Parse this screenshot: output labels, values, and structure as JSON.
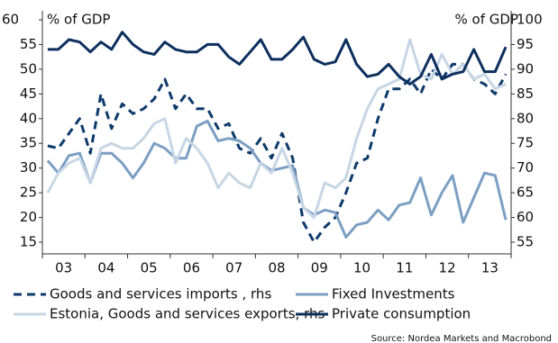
{
  "chart_data": {
    "type": "line",
    "ylabel": "% of GDP",
    "y2label": "% of GDP",
    "categories": [
      null,
      "03",
      null,
      null,
      null,
      "04",
      null,
      null,
      null,
      "05",
      null,
      null,
      null,
      "06",
      null,
      null,
      null,
      "07",
      null,
      null,
      null,
      "08",
      null,
      null,
      null,
      "09",
      null,
      null,
      null,
      "10",
      null,
      null,
      null,
      "11",
      null,
      null,
      null,
      "12",
      null,
      null,
      null,
      "13",
      null,
      null
    ],
    "ylim": [
      15,
      60
    ],
    "yticks": [
      15,
      20,
      25,
      30,
      35,
      40,
      45,
      50,
      55,
      60
    ],
    "y2lim": [
      55,
      100
    ],
    "y2ticks": [
      55,
      60,
      65,
      70,
      75,
      80,
      85,
      90,
      95,
      100
    ],
    "series": [
      {
        "name": "Goods and services imports , rhs",
        "color": "#0d3a6b",
        "dashed": true,
        "axis": "y2",
        "values": [
          74.5,
          74,
          77,
          80,
          73,
          85,
          78,
          83,
          81,
          82,
          84,
          88,
          82,
          85,
          82,
          82,
          78,
          79,
          74,
          73,
          76,
          72,
          77,
          72,
          59,
          55,
          58,
          60,
          65,
          71,
          72,
          80,
          86,
          86,
          88,
          85,
          90,
          88,
          91,
          91,
          88,
          87,
          85,
          89
        ]
      },
      {
        "name": "Fixed Investments",
        "color": "#7b9fc2",
        "dashed": false,
        "values": [
          31.5,
          29,
          32.5,
          33,
          27,
          33,
          33,
          31,
          28,
          31,
          35,
          34,
          32,
          32,
          38.5,
          39.5,
          35.5,
          36,
          35.5,
          34,
          31,
          29.5,
          30,
          30.5,
          22,
          20.5,
          21.5,
          21,
          16,
          18.5,
          19,
          21.5,
          19.5,
          22.5,
          23,
          28,
          20.5,
          25,
          28.5,
          19,
          24,
          29,
          28.5,
          19.5
        ]
      },
      {
        "name": "Estonia, Goods and services exports, rhs",
        "color": "#c6d6e4",
        "dashed": false,
        "axis": "y2",
        "values": [
          65,
          69,
          71,
          72,
          67,
          74,
          75,
          74,
          74,
          76,
          79,
          80,
          71,
          76,
          74,
          71,
          66,
          69,
          67,
          66,
          71,
          69,
          74,
          69,
          62,
          60,
          67,
          66,
          68,
          76,
          82,
          86,
          87,
          88,
          96,
          89,
          88,
          93,
          89,
          91,
          88,
          89,
          86,
          87
        ]
      },
      {
        "name": "Private consumption",
        "color": "#0d2f5e",
        "dashed": false,
        "values": [
          54,
          54,
          56,
          55.5,
          53.5,
          55.5,
          54,
          57.5,
          55,
          53.5,
          53,
          55.5,
          54,
          53.5,
          53.5,
          55,
          55,
          52.5,
          51,
          53.5,
          56,
          52,
          52,
          54,
          56.5,
          52,
          51,
          51.5,
          56,
          51,
          48.5,
          49,
          51,
          48.5,
          47,
          48.5,
          53,
          48,
          49,
          49.5,
          54,
          49.5,
          49.5,
          54.5
        ]
      }
    ],
    "source": "Source: Nordea Markets and Macrobond"
  }
}
